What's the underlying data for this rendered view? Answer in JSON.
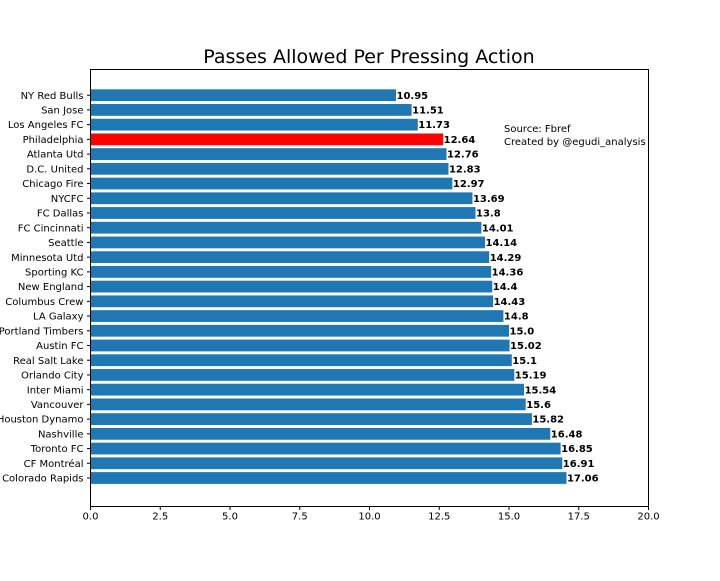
{
  "chart_data": {
    "type": "bar",
    "orientation": "horizontal",
    "title": "Passes Allowed Per Pressing Action",
    "xlabel": "",
    "ylabel": "",
    "xlim": [
      0,
      20
    ],
    "x_ticks": [
      0,
      2.5,
      5,
      7.5,
      10,
      12.5,
      15,
      17.5,
      20
    ],
    "x_tick_labels": [
      "0.0",
      "2.5",
      "5.0",
      "7.5",
      "10.0",
      "12.5",
      "15.0",
      "17.5",
      "20.0"
    ],
    "grid": false,
    "categories": [
      "NY Red Bulls",
      "San Jose",
      "Los Angeles FC",
      "Philadelphia",
      "Atlanta Utd",
      "D.C. United",
      "Chicago Fire",
      "NYCFC",
      "FC Dallas",
      "FC Cincinnati",
      "Seattle",
      "Minnesota Utd",
      "Sporting KC",
      "New England",
      "Columbus Crew",
      "LA Galaxy",
      "Portland Timbers",
      "Austin FC",
      "Real Salt Lake",
      "Orlando City",
      "Inter Miami",
      "Vancouver",
      "Houston Dynamo",
      "Nashville",
      "Toronto FC",
      "CF Montréal",
      "Colorado Rapids"
    ],
    "values": [
      10.95,
      11.51,
      11.73,
      12.64,
      12.76,
      12.83,
      12.97,
      13.69,
      13.8,
      14.01,
      14.14,
      14.29,
      14.36,
      14.4,
      14.43,
      14.8,
      15.0,
      15.02,
      15.1,
      15.19,
      15.54,
      15.6,
      15.82,
      16.48,
      16.85,
      16.91,
      17.06
    ],
    "value_labels": [
      "10.95",
      "11.51",
      "11.73",
      "12.64",
      "12.76",
      "12.83",
      "12.97",
      "13.69",
      "13.8",
      "14.01",
      "14.14",
      "14.29",
      "14.36",
      "14.4",
      "14.43",
      "14.8",
      "15.0",
      "15.02",
      "15.1",
      "15.19",
      "15.54",
      "15.6",
      "15.82",
      "16.48",
      "16.85",
      "16.91",
      "17.06"
    ],
    "highlight_category": "Philadelphia",
    "colors": {
      "bar": "#1f77b4",
      "highlight": "#ff0000",
      "text": "#000000",
      "axis": "#000000"
    },
    "annotation": [
      "Source: Fbref",
      "Created by @egudi_analysis"
    ]
  }
}
